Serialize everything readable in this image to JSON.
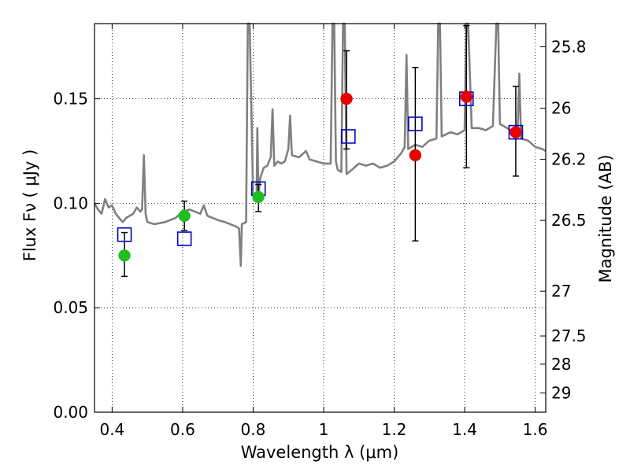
{
  "chart_data": {
    "type": "scatter",
    "title": "",
    "xlabel": "Wavelength  λ (μm)",
    "ylabel": "Flux  Fν  ( μJy )",
    "ylabel_right": "Magnitude (AB)",
    "xlim": [
      0.35,
      1.63
    ],
    "ylim": [
      0.0,
      0.186
    ],
    "grid": true,
    "grid_style": "dotted",
    "x_ticks": [
      0.4,
      0.6,
      0.8,
      1.0,
      1.2,
      1.4,
      1.6
    ],
    "x_tick_labels": [
      "0.4",
      "0.6",
      "0.8",
      "1",
      "1.2",
      "1.4",
      "1.6"
    ],
    "y_ticks": [
      0.0,
      0.05,
      0.1,
      0.15
    ],
    "y_tick_labels": [
      "0.00",
      "0.05",
      "0.10",
      "0.15"
    ],
    "right_axis_ticks": [
      {
        "label": "25.8",
        "flux": 0.1749
      },
      {
        "label": "26",
        "flux": 0.1455
      },
      {
        "label": "26.2",
        "flux": 0.121
      },
      {
        "label": "26.5",
        "flux": 0.0918
      },
      {
        "label": "27",
        "flux": 0.0579
      },
      {
        "label": "27.5",
        "flux": 0.0365
      },
      {
        "label": "28",
        "flux": 0.023
      },
      {
        "label": "29",
        "flux": 0.0092
      }
    ],
    "colors": {
      "spectrum": "#808080",
      "green": "#1fbf1f",
      "red": "#e60000",
      "model": "#0000cc",
      "errorbar": "#000000"
    },
    "series": [
      {
        "kind": "spectrum",
        "points": [
          [
            0.35,
            0.1
          ],
          [
            0.36,
            0.097
          ],
          [
            0.37,
            0.095
          ],
          [
            0.38,
            0.102
          ],
          [
            0.39,
            0.098
          ],
          [
            0.4,
            0.099
          ],
          [
            0.41,
            0.095
          ],
          [
            0.42,
            0.093
          ],
          [
            0.43,
            0.091
          ],
          [
            0.44,
            0.093
          ],
          [
            0.45,
            0.094
          ],
          [
            0.46,
            0.095
          ],
          [
            0.47,
            0.098
          ],
          [
            0.48,
            0.096
          ],
          [
            0.485,
            0.097
          ],
          [
            0.49,
            0.123
          ],
          [
            0.495,
            0.095
          ],
          [
            0.5,
            0.091
          ],
          [
            0.52,
            0.09
          ],
          [
            0.55,
            0.091
          ],
          [
            0.58,
            0.093
          ],
          [
            0.6,
            0.096
          ],
          [
            0.62,
            0.097
          ],
          [
            0.65,
            0.095
          ],
          [
            0.66,
            0.099
          ],
          [
            0.67,
            0.094
          ],
          [
            0.7,
            0.092
          ],
          [
            0.72,
            0.091
          ],
          [
            0.75,
            0.089
          ],
          [
            0.76,
            0.088
          ],
          [
            0.765,
            0.07
          ],
          [
            0.768,
            0.09
          ],
          [
            0.78,
            0.091
          ],
          [
            0.785,
            0.186
          ],
          [
            0.79,
            0.186
          ],
          [
            0.8,
            0.104
          ],
          [
            0.81,
            0.105
          ],
          [
            0.812,
            0.136
          ],
          [
            0.815,
            0.103
          ],
          [
            0.82,
            0.112
          ],
          [
            0.83,
            0.117
          ],
          [
            0.84,
            0.118
          ],
          [
            0.85,
            0.122
          ],
          [
            0.855,
            0.145
          ],
          [
            0.86,
            0.118
          ],
          [
            0.87,
            0.12
          ],
          [
            0.88,
            0.119
          ],
          [
            0.89,
            0.12
          ],
          [
            0.9,
            0.126
          ],
          [
            0.905,
            0.142
          ],
          [
            0.91,
            0.123
          ],
          [
            0.93,
            0.122
          ],
          [
            0.95,
            0.125
          ],
          [
            0.96,
            0.121
          ],
          [
            0.98,
            0.12
          ],
          [
            1.0,
            0.119
          ],
          [
            1.02,
            0.119
          ],
          [
            1.025,
            0.186
          ],
          [
            1.03,
            0.186
          ],
          [
            1.035,
            0.12
          ],
          [
            1.04,
            0.116
          ],
          [
            1.05,
            0.115
          ],
          [
            1.055,
            0.186
          ],
          [
            1.06,
            0.186
          ],
          [
            1.065,
            0.114
          ],
          [
            1.08,
            0.116
          ],
          [
            1.1,
            0.119
          ],
          [
            1.12,
            0.118
          ],
          [
            1.14,
            0.119
          ],
          [
            1.16,
            0.117
          ],
          [
            1.18,
            0.118
          ],
          [
            1.2,
            0.12
          ],
          [
            1.22,
            0.124
          ],
          [
            1.23,
            0.127
          ],
          [
            1.235,
            0.171
          ],
          [
            1.24,
            0.126
          ],
          [
            1.26,
            0.128
          ],
          [
            1.28,
            0.127
          ],
          [
            1.3,
            0.13
          ],
          [
            1.32,
            0.131
          ],
          [
            1.325,
            0.186
          ],
          [
            1.33,
            0.186
          ],
          [
            1.335,
            0.132
          ],
          [
            1.36,
            0.134
          ],
          [
            1.38,
            0.133
          ],
          [
            1.4,
            0.135
          ],
          [
            1.405,
            0.186
          ],
          [
            1.41,
            0.186
          ],
          [
            1.42,
            0.136
          ],
          [
            1.44,
            0.136
          ],
          [
            1.46,
            0.135
          ],
          [
            1.48,
            0.137
          ],
          [
            1.49,
            0.186
          ],
          [
            1.495,
            0.186
          ],
          [
            1.5,
            0.138
          ],
          [
            1.52,
            0.136
          ],
          [
            1.54,
            0.134
          ],
          [
            1.55,
            0.133
          ],
          [
            1.555,
            0.162
          ],
          [
            1.56,
            0.131
          ],
          [
            1.58,
            0.13
          ],
          [
            1.6,
            0.127
          ],
          [
            1.62,
            0.126
          ],
          [
            1.63,
            0.125
          ]
        ]
      },
      {
        "kind": "observed",
        "color": "green",
        "points": [
          {
            "x": 0.435,
            "y": 0.075,
            "err_lo": 0.065,
            "err_hi": 0.086
          },
          {
            "x": 0.605,
            "y": 0.094,
            "err_lo": 0.087,
            "err_hi": 0.101
          },
          {
            "x": 0.815,
            "y": 0.103,
            "err_lo": 0.096,
            "err_hi": 0.109
          }
        ]
      },
      {
        "kind": "observed",
        "color": "red",
        "points": [
          {
            "x": 1.065,
            "y": 0.15,
            "err_lo": 0.126,
            "err_hi": 0.173
          },
          {
            "x": 1.26,
            "y": 0.123,
            "err_lo": 0.082,
            "err_hi": 0.165
          },
          {
            "x": 1.405,
            "y": 0.151,
            "err_lo": 0.117,
            "err_hi": 0.185
          },
          {
            "x": 1.545,
            "y": 0.134,
            "err_lo": 0.113,
            "err_hi": 0.156
          }
        ]
      },
      {
        "kind": "model",
        "color": "model",
        "points": [
          {
            "x": 0.435,
            "y": 0.085
          },
          {
            "x": 0.605,
            "y": 0.083
          },
          {
            "x": 0.815,
            "y": 0.107
          },
          {
            "x": 1.07,
            "y": 0.132
          },
          {
            "x": 1.26,
            "y": 0.138
          },
          {
            "x": 1.405,
            "y": 0.15
          },
          {
            "x": 1.545,
            "y": 0.134
          }
        ]
      }
    ]
  }
}
